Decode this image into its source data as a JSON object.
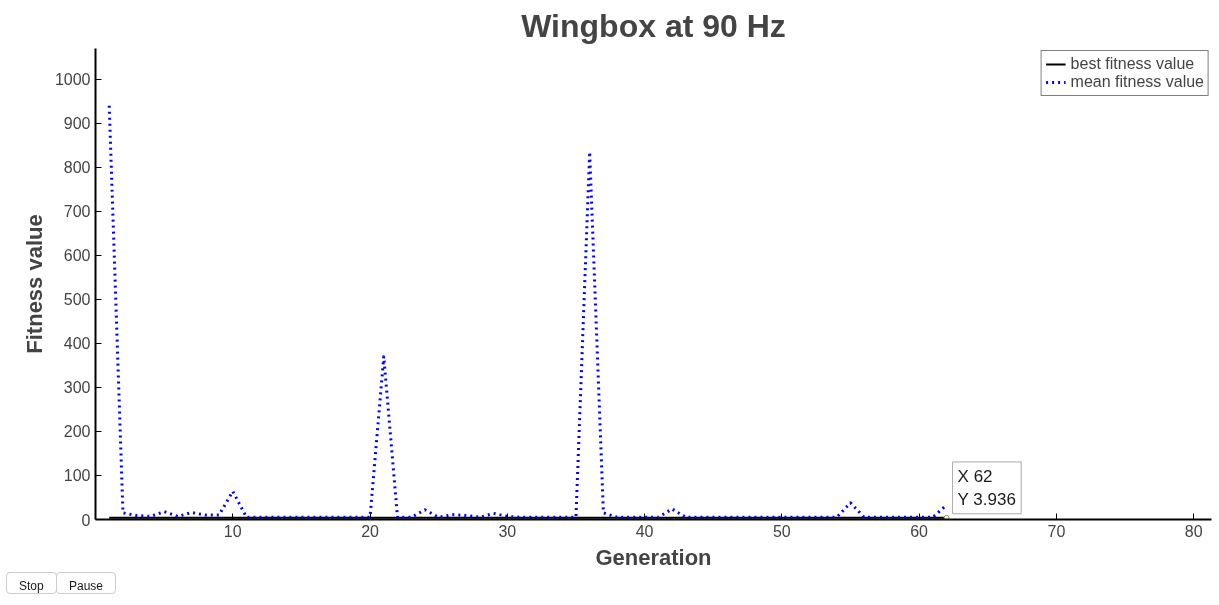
{
  "chart_data": {
    "type": "line",
    "title": "Wingbox at 90 Hz",
    "xlabel": "Generation",
    "ylabel": "Fitness value",
    "xlim": [
      0,
      81.3
    ],
    "ylim": [
      0,
      1070
    ],
    "xticks": [
      10,
      20,
      30,
      40,
      50,
      60,
      70,
      80
    ],
    "yticks": [
      0,
      100,
      200,
      300,
      400,
      500,
      600,
      700,
      800,
      900,
      1000
    ],
    "grid": false,
    "legend": "top right",
    "marker": "none",
    "series": [
      {
        "name": "best fitness value",
        "color": "#000000",
        "line_style": "solid",
        "x": [
          1,
          2,
          3,
          4,
          5,
          6,
          7,
          8,
          9,
          10,
          11,
          12,
          13,
          14,
          15,
          16,
          17,
          18,
          19,
          20,
          21,
          22,
          23,
          24,
          25,
          26,
          27,
          28,
          29,
          30,
          31,
          32,
          33,
          34,
          35,
          36,
          37,
          38,
          39,
          40,
          41,
          42,
          43,
          44,
          45,
          46,
          47,
          48,
          49,
          50,
          51,
          52,
          53,
          54,
          55,
          56,
          57,
          58,
          59,
          60,
          61,
          62
        ],
        "values": [
          4,
          4,
          4,
          4,
          4,
          4,
          4,
          4,
          4,
          4,
          4,
          4,
          4,
          4,
          4,
          4,
          4,
          4,
          4,
          4,
          4,
          4,
          4,
          4,
          4,
          4,
          4,
          4,
          4,
          4,
          4,
          4,
          4,
          4,
          4,
          4,
          4,
          4,
          4,
          4,
          4,
          4,
          4,
          4,
          4,
          4,
          4,
          4,
          4,
          4,
          4,
          4,
          4,
          4,
          4,
          4,
          4,
          4,
          4,
          4,
          4,
          3.936
        ]
      },
      {
        "name": "mean fitness value",
        "color": "#0000ff",
        "line_style": "dotted",
        "x": [
          1,
          2,
          3,
          4,
          5,
          6,
          7,
          8,
          9,
          10,
          11,
          12,
          13,
          14,
          15,
          16,
          17,
          18,
          19,
          20,
          21,
          22,
          23,
          24,
          25,
          26,
          27,
          28,
          29,
          30,
          31,
          32,
          33,
          34,
          35,
          36,
          37,
          38,
          39,
          40,
          41,
          42,
          43,
          44,
          45,
          46,
          47,
          48,
          49,
          50,
          51,
          52,
          53,
          54,
          55,
          56,
          57,
          58,
          59,
          60,
          61,
          62
        ],
        "values": [
          940,
          15,
          9,
          7,
          18,
          7,
          16,
          10,
          10,
          64,
          5,
          5,
          5,
          5,
          5,
          5,
          5,
          5,
          5,
          5,
          370,
          5,
          5,
          22,
          5,
          11,
          9,
          5,
          14,
          7,
          5,
          5,
          5,
          5,
          5,
          835,
          15,
          5,
          5,
          5,
          5,
          24,
          5,
          5,
          5,
          5,
          5,
          5,
          5,
          5,
          5,
          5,
          5,
          5,
          38,
          5,
          5,
          5,
          5,
          5,
          5,
          33
        ]
      }
    ],
    "annotations": [
      {
        "text": "X 62\nY 3.936",
        "x": 62,
        "y": 3.936
      },
      "Stop",
      "Pause"
    ]
  }
}
